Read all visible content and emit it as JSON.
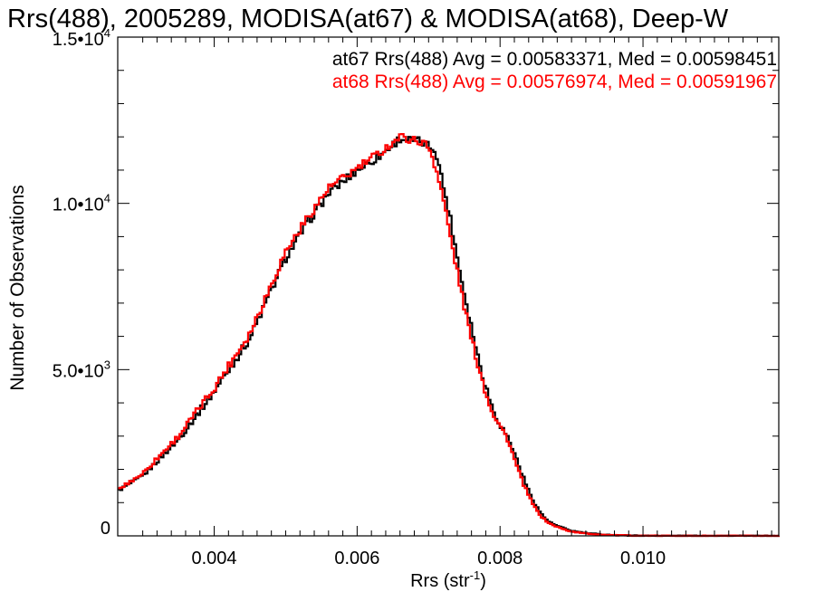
{
  "chart_data": {
    "type": "line",
    "title": "Rrs(488), 2005289, MODISA(at67) & MODISA(at68), Deep-W",
    "xlabel": "Rrs (str",
    "xlabel_sup": "-1",
    "xlabel_close": ")",
    "ylabel": "Number of Observations",
    "xlim": [
      0.00265,
      0.0119
    ],
    "ylim": [
      0,
      15000
    ],
    "x_ticks": [
      0.004,
      0.006,
      0.008,
      0.01
    ],
    "x_tick_labels": [
      "0.004",
      "0.006",
      "0.008",
      "0.010"
    ],
    "y_ticks": [
      0,
      5000,
      10000,
      15000
    ],
    "y_tick_labels": [
      {
        "base": "0",
        "exp": ""
      },
      {
        "base": "5.0•10",
        "exp": "3"
      },
      {
        "base": "1.0•10",
        "exp": "4"
      },
      {
        "base": "1.5•10",
        "exp": "4"
      }
    ],
    "grid": false,
    "legend_position": "top-right",
    "series": [
      {
        "name": "at67",
        "color": "#000000",
        "label": "at67 Rrs(488) Avg = 0.00583371, Med = 0.00598451",
        "x": [
          0.00265,
          0.003,
          0.0035,
          0.004,
          0.0045,
          0.005,
          0.0053,
          0.0056,
          0.006,
          0.0063,
          0.0066,
          0.0069,
          0.0071,
          0.0072,
          0.0073,
          0.0074,
          0.0075,
          0.0076,
          0.0077,
          0.0078,
          0.0079,
          0.008,
          0.0081,
          0.0082,
          0.0083,
          0.0084,
          0.0085,
          0.0086,
          0.0087,
          0.0088,
          0.0089,
          0.009,
          0.0092,
          0.0094,
          0.0096,
          0.0098,
          0.01,
          0.0105,
          0.011,
          0.0119
        ],
        "y": [
          1350,
          1800,
          2900,
          4350,
          5950,
          8350,
          9400,
          10300,
          11000,
          11400,
          11950,
          11850,
          11600,
          10600,
          9600,
          8400,
          7300,
          6300,
          5300,
          4500,
          3800,
          3350,
          3000,
          2500,
          1900,
          1350,
          920,
          590,
          400,
          300,
          220,
          150,
          85,
          45,
          25,
          12,
          5,
          2,
          1,
          0
        ]
      },
      {
        "name": "at68",
        "color": "#ff0000",
        "label": "at68 Rrs(488) Avg = 0.00576974, Med = 0.00591967",
        "x": [
          0.00265,
          0.003,
          0.0035,
          0.004,
          0.0045,
          0.005,
          0.0053,
          0.0056,
          0.006,
          0.0063,
          0.0066,
          0.0069,
          0.007,
          0.0071,
          0.0072,
          0.0073,
          0.0074,
          0.0075,
          0.0076,
          0.0077,
          0.0078,
          0.0079,
          0.008,
          0.0081,
          0.0082,
          0.0083,
          0.0084,
          0.0085,
          0.0086,
          0.0087,
          0.0088,
          0.0089,
          0.009,
          0.0092,
          0.0094,
          0.0096,
          0.0098,
          0.01,
          0.0105,
          0.011,
          0.0119
        ],
        "y": [
          1380,
          1880,
          3000,
          4450,
          6100,
          8550,
          9550,
          10450,
          11050,
          11500,
          12000,
          11850,
          11700,
          11100,
          10200,
          9050,
          7950,
          6900,
          5900,
          5100,
          4300,
          3700,
          3300,
          2950,
          2300,
          1700,
          1200,
          800,
          530,
          360,
          270,
          190,
          130,
          70,
          38,
          20,
          10,
          4,
          1,
          0,
          0
        ]
      }
    ]
  }
}
